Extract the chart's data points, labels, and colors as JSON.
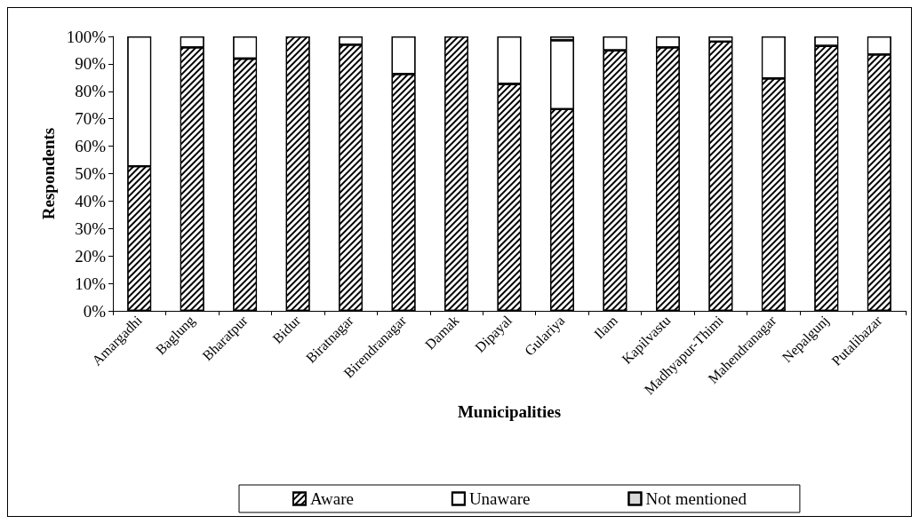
{
  "chart_data": {
    "type": "bar",
    "stacked": true,
    "xlabel": "Municipalities",
    "ylabel": "Respondents",
    "categories": [
      "Amargadhi",
      "Baglung",
      "Bharatpur",
      "Bidur",
      "Biratnagar",
      "Birendranagar",
      "Damak",
      "Dipayal",
      "Gulariya",
      "Ilam",
      "Kapilvastu",
      "Madhyapur-Thimi",
      "Mahendranagar",
      "Nepalgunj",
      "Putalibazar"
    ],
    "series": [
      {
        "name": "Aware",
        "color": "#000000",
        "values": [
          52.7,
          96.0,
          91.9,
          100,
          97.0,
          86.3,
          100,
          82.7,
          73.5,
          94.9,
          96.0,
          98.1,
          84.7,
          96.5,
          93.4
        ]
      },
      {
        "name": "Unaware",
        "color": "#ffffff",
        "values": [
          47.3,
          4.0,
          8.1,
          0,
          3.0,
          13.7,
          0,
          17.3,
          25.1,
          5.1,
          4.0,
          1.9,
          15.3,
          3.5,
          6.6
        ]
      },
      {
        "name": "Not mentioned",
        "color": "#d9d9d9",
        "values": [
          0,
          0,
          0,
          0,
          0,
          0,
          0,
          0,
          1.4,
          0,
          0,
          0,
          0,
          0,
          0
        ]
      }
    ],
    "ylim": [
      0,
      100
    ],
    "yticks": [
      {
        "value": 0,
        "label": "0%"
      },
      {
        "value": 10,
        "label": "10%"
      },
      {
        "value": 20,
        "label": "20%"
      },
      {
        "value": 30,
        "label": "30%"
      },
      {
        "value": 40,
        "label": "40%"
      },
      {
        "value": 50,
        "label": "50%"
      },
      {
        "value": 60,
        "label": "60%"
      },
      {
        "value": 70,
        "label": "70%"
      },
      {
        "value": 80,
        "label": "80%"
      },
      {
        "value": 90,
        "label": "90%"
      },
      {
        "value": 100,
        "label": "100%"
      }
    ],
    "grid": false,
    "legend": "bottom"
  }
}
